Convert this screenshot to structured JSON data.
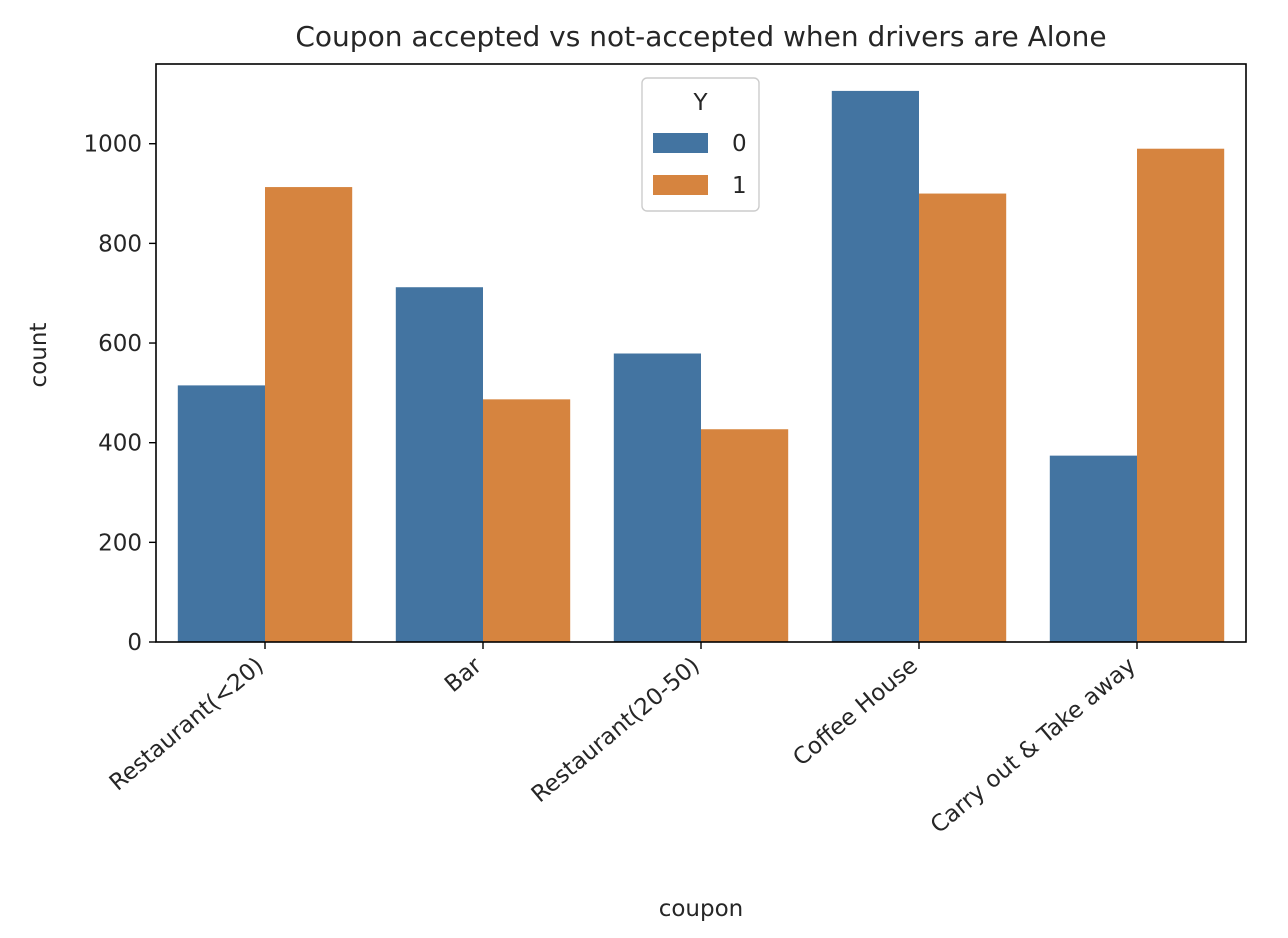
{
  "chart_data": {
    "type": "bar",
    "title": "Coupon accepted vs not-accepted when drivers are Alone",
    "xlabel": "coupon",
    "ylabel": "count",
    "categories": [
      "Restaurant(<20)",
      "Bar",
      "Restaurant(20-50)",
      "Coffee House",
      "Carry out & Take away"
    ],
    "series": [
      {
        "name": "0",
        "values": [
          515,
          712,
          579,
          1106,
          374
        ],
        "color": "#4374a1"
      },
      {
        "name": "1",
        "values": [
          913,
          487,
          427,
          900,
          990
        ],
        "color": "#d6843f"
      }
    ],
    "ylim": [
      0,
      1160
    ],
    "yticks": [
      0,
      200,
      400,
      600,
      800,
      1000
    ],
    "legend": {
      "title": "Y",
      "placement": "top-center"
    },
    "grid": false
  }
}
